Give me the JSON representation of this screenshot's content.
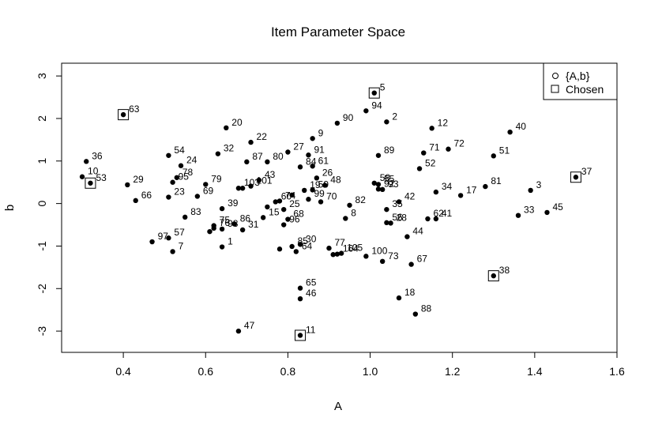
{
  "chart_data": {
    "type": "scatter",
    "title": "Item Parameter Space",
    "xlabel": "A",
    "ylabel": "b",
    "xlim": [
      0.25,
      1.6
    ],
    "ylim": [
      -3.5,
      3.3
    ],
    "x_ticks": [
      0.4,
      0.6,
      0.8,
      1.0,
      1.2,
      1.4,
      1.6
    ],
    "x_tick_labels": [
      "0.4",
      "0.6",
      "0.8",
      "1.0",
      "1.2",
      "1.4",
      "1.6"
    ],
    "y_ticks": [
      -3,
      -2,
      -1,
      0,
      1,
      2,
      3
    ],
    "y_tick_labels": [
      "-3",
      "-2",
      "-1",
      "0",
      "1",
      "2",
      "3"
    ],
    "legend": {
      "position": "top-right",
      "entries": [
        {
          "label": "{A,b}",
          "symbol": "circle"
        },
        {
          "label": "Chosen",
          "symbol": "square"
        }
      ]
    },
    "series": [
      {
        "name": "{A,b}",
        "points": [
          {
            "label": "1",
            "a": 0.64,
            "b": -1.02
          },
          {
            "label": "2",
            "a": 1.04,
            "b": 1.92
          },
          {
            "label": "3",
            "a": 1.39,
            "b": 0.31
          },
          {
            "label": "5",
            "a": 1.01,
            "b": 2.6
          },
          {
            "label": "7",
            "a": 0.52,
            "b": -1.13
          },
          {
            "label": "8",
            "a": 0.94,
            "b": -0.35
          },
          {
            "label": "9",
            "a": 0.86,
            "b": 1.53
          },
          {
            "label": "10",
            "a": 0.3,
            "b": 0.63
          },
          {
            "label": "11",
            "a": 0.83,
            "b": -3.1
          },
          {
            "label": "12",
            "a": 1.15,
            "b": 1.77
          },
          {
            "label": "15",
            "a": 0.74,
            "b": -0.33
          },
          {
            "label": "17",
            "a": 1.22,
            "b": 0.19
          },
          {
            "label": "18",
            "a": 1.07,
            "b": -2.22
          },
          {
            "label": "19",
            "a": 0.84,
            "b": 0.31
          },
          {
            "label": "20",
            "a": 0.65,
            "b": 1.78
          },
          {
            "label": "22",
            "a": 0.71,
            "b": 1.44
          },
          {
            "label": "23",
            "a": 0.51,
            "b": 0.15
          },
          {
            "label": "24",
            "a": 0.54,
            "b": 0.89
          },
          {
            "label": "25",
            "a": 0.79,
            "b": -0.14
          },
          {
            "label": "26",
            "a": 0.87,
            "b": 0.6
          },
          {
            "label": "27",
            "a": 0.8,
            "b": 1.21
          },
          {
            "label": "28",
            "a": 1.05,
            "b": -0.46
          },
          {
            "label": "29",
            "a": 0.41,
            "b": 0.44
          },
          {
            "label": "30",
            "a": 0.83,
            "b": -0.96
          },
          {
            "label": "31",
            "a": 0.69,
            "b": -0.62
          },
          {
            "label": "32",
            "a": 0.63,
            "b": 1.17
          },
          {
            "label": "33",
            "a": 1.36,
            "b": -0.28
          },
          {
            "label": "34",
            "a": 1.16,
            "b": 0.27
          },
          {
            "label": "35",
            "a": 1.04,
            "b": -0.14
          },
          {
            "label": "36",
            "a": 0.31,
            "b": 0.99
          },
          {
            "label": "37",
            "a": 1.5,
            "b": 0.62
          },
          {
            "label": "38",
            "a": 1.3,
            "b": -1.7
          },
          {
            "label": "39",
            "a": 0.64,
            "b": -0.12
          },
          {
            "label": "40",
            "a": 1.34,
            "b": 1.68
          },
          {
            "label": "41",
            "a": 1.16,
            "b": -0.36
          },
          {
            "label": "42",
            "a": 1.07,
            "b": 0.04
          },
          {
            "label": "43",
            "a": 0.73,
            "b": 0.55
          },
          {
            "label": "44",
            "a": 1.09,
            "b": -0.78
          },
          {
            "label": "45",
            "a": 1.43,
            "b": -0.21
          },
          {
            "label": "46",
            "a": 0.83,
            "b": -2.24
          },
          {
            "label": "47",
            "a": 0.68,
            "b": -3.0
          },
          {
            "label": "48",
            "a": 0.89,
            "b": 0.43
          },
          {
            "label": "51",
            "a": 1.3,
            "b": 1.12
          },
          {
            "label": "52",
            "a": 1.12,
            "b": 0.82
          },
          {
            "label": "53",
            "a": 0.32,
            "b": 0.48
          },
          {
            "label": "54",
            "a": 0.51,
            "b": 1.13
          },
          {
            "label": "55",
            "a": 1.02,
            "b": 0.45
          },
          {
            "label": "56",
            "a": 1.04,
            "b": -0.45
          },
          {
            "label": "57",
            "a": 0.51,
            "b": -0.81
          },
          {
            "label": "58",
            "a": 1.01,
            "b": 0.48
          },
          {
            "label": "59",
            "a": 0.86,
            "b": 0.32
          },
          {
            "label": "60",
            "a": 0.77,
            "b": 0.04
          },
          {
            "label": "61",
            "a": 0.86,
            "b": 0.88
          },
          {
            "label": "62",
            "a": 1.14,
            "b": -0.36
          },
          {
            "label": "63",
            "a": 0.4,
            "b": 2.09
          },
          {
            "label": "64",
            "a": 0.82,
            "b": -1.13
          },
          {
            "label": "65",
            "a": 0.83,
            "b": -1.99
          },
          {
            "label": "66",
            "a": 0.43,
            "b": 0.07
          },
          {
            "label": "67",
            "a": 1.1,
            "b": -1.43
          },
          {
            "label": "68",
            "a": 0.8,
            "b": -0.37
          },
          {
            "label": "69",
            "a": 0.58,
            "b": 0.17
          },
          {
            "label": "70",
            "a": 0.88,
            "b": 0.04
          },
          {
            "label": "71",
            "a": 1.13,
            "b": 1.19
          },
          {
            "label": "72",
            "a": 1.19,
            "b": 1.28
          },
          {
            "label": "73",
            "a": 1.03,
            "b": -1.36
          },
          {
            "label": "74",
            "a": 0.78,
            "b": 0.06
          },
          {
            "label": "75",
            "a": 0.62,
            "b": -0.52
          },
          {
            "label": "76",
            "a": 0.62,
            "b": -0.58
          },
          {
            "label": "77",
            "a": 0.9,
            "b": -1.05
          },
          {
            "label": "78",
            "a": 0.53,
            "b": 0.61
          },
          {
            "label": "79",
            "a": 0.6,
            "b": 0.45
          },
          {
            "label": "80",
            "a": 0.75,
            "b": 0.98
          },
          {
            "label": "81",
            "a": 1.28,
            "b": 0.4
          },
          {
            "label": "82",
            "a": 0.95,
            "b": -0.04
          },
          {
            "label": "83",
            "a": 0.55,
            "b": -0.32
          },
          {
            "label": "84",
            "a": 0.83,
            "b": 0.86
          },
          {
            "label": "85",
            "a": 0.81,
            "b": -1.01
          },
          {
            "label": "86",
            "a": 0.67,
            "b": -0.48
          },
          {
            "label": "87",
            "a": 0.7,
            "b": 0.98
          },
          {
            "label": "88",
            "a": 1.11,
            "b": -2.6
          },
          {
            "label": "89",
            "a": 1.02,
            "b": 1.13
          },
          {
            "label": "90",
            "a": 0.92,
            "b": 1.89
          },
          {
            "label": "91",
            "a": 0.85,
            "b": 1.14
          },
          {
            "label": "92",
            "a": 1.02,
            "b": 0.34
          },
          {
            "label": "93",
            "a": 1.03,
            "b": 0.33
          },
          {
            "label": "94",
            "a": 0.99,
            "b": 2.18
          },
          {
            "label": "95",
            "a": 0.52,
            "b": 0.5
          },
          {
            "label": "96",
            "a": 0.79,
            "b": -0.5
          },
          {
            "label": "97",
            "a": 0.47,
            "b": -0.9
          },
          {
            "label": "98",
            "a": 0.64,
            "b": -0.6
          },
          {
            "label": "99",
            "a": 0.85,
            "b": 0.1
          },
          {
            "label": "100",
            "a": 0.99,
            "b": -1.24
          },
          {
            "label": "101",
            "a": 0.71,
            "b": 0.41
          },
          {
            "label": "103",
            "a": 0.68,
            "b": 0.36
          },
          {
            "label": "105",
            "a": 0.93,
            "b": -1.17
          },
          {
            "label": "164",
            "a": 0.92,
            "b": -1.19
          },
          {
            "label": "",
            "a": 0.69,
            "b": 0.36
          },
          {
            "label": "",
            "a": 0.61,
            "b": -0.66
          },
          {
            "label": "",
            "a": 0.81,
            "b": 0.2
          },
          {
            "label": "",
            "a": 0.75,
            "b": -0.08
          },
          {
            "label": "",
            "a": 0.78,
            "b": -1.07
          },
          {
            "label": "",
            "a": 0.91,
            "b": -1.2
          }
        ]
      },
      {
        "name": "Chosen",
        "points": [
          {
            "a": 0.4,
            "b": 2.09
          },
          {
            "a": 0.32,
            "b": 0.48
          },
          {
            "a": 1.01,
            "b": 2.6
          },
          {
            "a": 1.5,
            "b": 0.62
          },
          {
            "a": 1.3,
            "b": -1.7
          },
          {
            "a": 0.83,
            "b": -3.1
          }
        ]
      }
    ]
  }
}
